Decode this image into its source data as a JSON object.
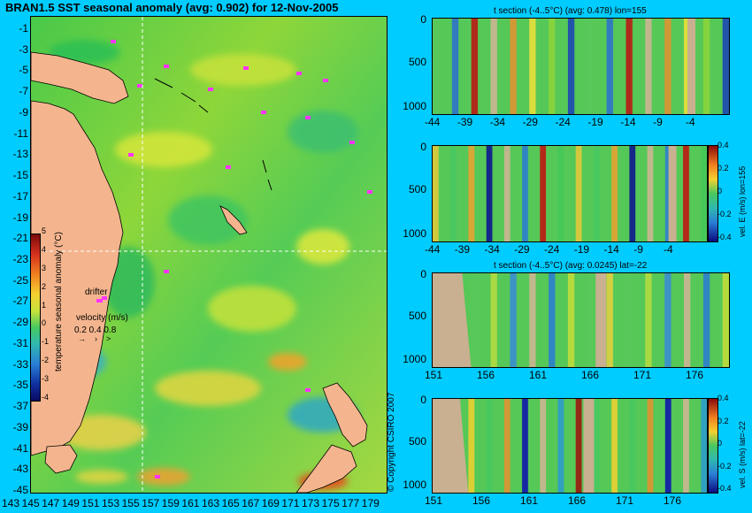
{
  "header": {
    "title": "BRAN1.5 SST seasonal anomaly (avg: 0.902) for 12-Nov-2005"
  },
  "map": {
    "lat_ticks": [
      "-1",
      "-3",
      "-5",
      "-7",
      "-9",
      "-11",
      "-13",
      "-15",
      "-17",
      "-19",
      "-21",
      "-23",
      "-25",
      "-27",
      "-29",
      "-31",
      "-33",
      "-35",
      "-37",
      "-39",
      "-41",
      "-43",
      "-45"
    ],
    "lon_ticks": [
      "143",
      "145",
      "147",
      "149",
      "151",
      "153",
      "155",
      "157",
      "159",
      "161",
      "163",
      "165",
      "167",
      "169",
      "171",
      "173",
      "175",
      "177",
      "179"
    ],
    "colorbar_label": "temperature seasonal anomaly (°C)",
    "colorbar_ticks": [
      "5",
      "4",
      "3",
      "2",
      "1",
      "0",
      "-1",
      "-2",
      "-3",
      "-4"
    ],
    "drifter_label": "drifter",
    "velocity_label": "velocity (m/s)",
    "velocity_ticks": "0.2 0.4 0.8",
    "copyright": "© Copyright CSIRO 2007",
    "colors": {
      "background": "#00ccff",
      "land": "#f4b58e",
      "drifter": "#ff33ff",
      "crosshair": "#ffffff"
    }
  },
  "chart_data": [
    {
      "type": "heatmap",
      "title": "t section (-4..5°C) (avg: 0.478) lon=155",
      "x_ticks": [
        "-44",
        "-39",
        "-34",
        "-29",
        "-24",
        "-19",
        "-14",
        "-9",
        "-4"
      ],
      "y_ticks": [
        "0",
        "500",
        "1000"
      ],
      "xlim": [
        -46,
        0
      ],
      "ylim": [
        1050,
        0
      ]
    },
    {
      "type": "heatmap",
      "title": "",
      "ylabel": "vel. E (m/s) lon=155",
      "x_ticks": [
        "-44",
        "-39",
        "-34",
        "-29",
        "-24",
        "-19",
        "-14",
        "-9",
        "-4"
      ],
      "y_ticks": [
        "0",
        "500",
        "1000"
      ],
      "colorbar_ticks": [
        "0.4",
        "0.2",
        "0",
        "-0.2",
        "-0.4"
      ],
      "xlim": [
        -46,
        0
      ],
      "ylim": [
        1050,
        0
      ]
    },
    {
      "type": "heatmap",
      "title": "t section (-4..5°C) (avg: 0.0245) lat=-22",
      "x_ticks": [
        "151",
        "156",
        "161",
        "166",
        "171",
        "176"
      ],
      "y_ticks": [
        "0",
        "500",
        "1000"
      ],
      "xlim": [
        149.5,
        180
      ],
      "ylim": [
        1050,
        0
      ]
    },
    {
      "type": "heatmap",
      "title": "",
      "ylabel": "vel. S (m/s) lat=-22",
      "x_ticks": [
        "151",
        "156",
        "161",
        "166",
        "171",
        "176"
      ],
      "y_ticks": [
        "0",
        "500",
        "1000"
      ],
      "colorbar_ticks": [
        "0.4",
        "0.2",
        "0",
        "-0.2",
        "-0.4"
      ],
      "xlim": [
        149.5,
        180
      ],
      "ylim": [
        1050,
        0
      ]
    }
  ]
}
